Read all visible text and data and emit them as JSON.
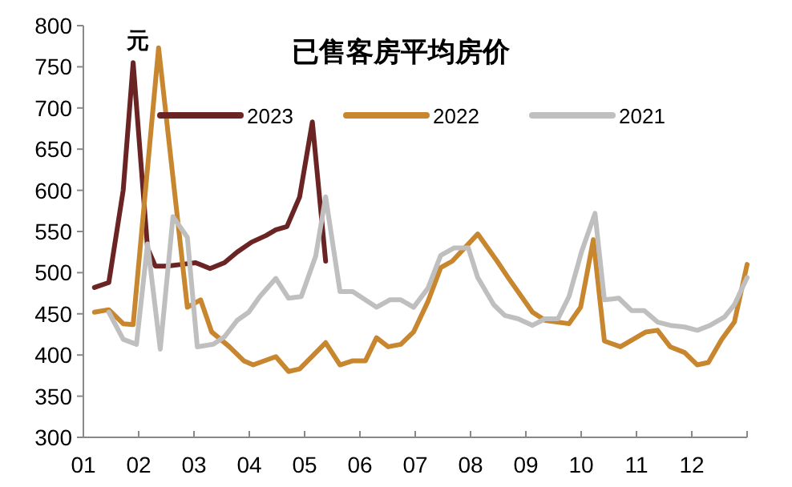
{
  "chart_data": {
    "type": "line",
    "title": "已售客房平均房价",
    "ylabel": "元",
    "xlim": [
      1,
      13
    ],
    "xticks": [
      {
        "value": 1,
        "label": "01"
      },
      {
        "value": 2,
        "label": "02"
      },
      {
        "value": 3,
        "label": "03"
      },
      {
        "value": 4,
        "label": "04"
      },
      {
        "value": 5,
        "label": "05"
      },
      {
        "value": 6,
        "label": "06"
      },
      {
        "value": 7,
        "label": "07"
      },
      {
        "value": 8,
        "label": "08"
      },
      {
        "value": 9,
        "label": "09"
      },
      {
        "value": 10,
        "label": "10"
      },
      {
        "value": 11,
        "label": "11"
      },
      {
        "value": 12,
        "label": "12"
      },
      {
        "value": 13,
        "label": null
      }
    ],
    "ylim": [
      300,
      800
    ],
    "yticks": [
      300,
      350,
      400,
      450,
      500,
      550,
      600,
      650,
      700,
      750,
      800
    ],
    "grid": false,
    "legend": "top",
    "marker": "none",
    "line_style": "solid",
    "series": [
      {
        "name": "2023",
        "color": "#6b2424",
        "x": [
          1.2,
          1.46,
          1.72,
          1.9,
          2.16,
          2.3,
          2.51,
          2.77,
          3.03,
          3.29,
          3.55,
          3.78,
          4.04,
          4.3,
          4.48,
          4.68,
          4.91,
          5.14,
          5.38
        ],
        "values": [
          482,
          488,
          600,
          755,
          530,
          508,
          508,
          510,
          512,
          505,
          512,
          525,
          537,
          545,
          552,
          556,
          592,
          683,
          514
        ]
      },
      {
        "name": "2022",
        "color": "#c8862f",
        "x": [
          1.2,
          1.46,
          1.72,
          1.9,
          2.36,
          2.88,
          3.12,
          3.32,
          3.64,
          3.9,
          4.07,
          4.48,
          4.71,
          4.91,
          5.38,
          5.64,
          5.87,
          6.1,
          6.3,
          6.51,
          6.74,
          6.97,
          7.23,
          7.46,
          7.67,
          8.13,
          8.48,
          8.68,
          9.12,
          9.35,
          9.78,
          9.99,
          10.22,
          10.42,
          10.71,
          10.94,
          11.17,
          11.38,
          11.61,
          11.87,
          12.1,
          12.3,
          12.54,
          12.77,
          13.0
        ],
        "values": [
          452,
          455,
          438,
          437,
          773,
          458,
          467,
          428,
          410,
          393,
          388,
          398,
          380,
          383,
          415,
          388,
          393,
          393,
          421,
          410,
          413,
          428,
          465,
          506,
          514,
          547,
          514,
          494,
          452,
          442,
          438,
          458,
          540,
          417,
          410,
          419,
          428,
          430,
          410,
          403,
          388,
          391,
          419,
          440,
          510
        ]
      },
      {
        "name": "2021",
        "color": "#bfbfbf",
        "x": [
          1.46,
          1.72,
          1.96,
          2.16,
          2.39,
          2.62,
          2.88,
          3.06,
          3.35,
          3.55,
          3.78,
          3.99,
          4.19,
          4.48,
          4.71,
          4.94,
          5.2,
          5.38,
          5.64,
          5.87,
          6.3,
          6.54,
          6.74,
          6.97,
          7.23,
          7.46,
          7.7,
          7.96,
          8.13,
          8.42,
          8.62,
          8.86,
          9.12,
          9.35,
          9.58,
          9.78,
          10.01,
          10.25,
          10.42,
          10.68,
          10.91,
          11.14,
          11.38,
          11.61,
          11.87,
          12.1,
          12.33,
          12.59,
          12.77,
          13.0
        ],
        "values": [
          452,
          419,
          413,
          535,
          407,
          568,
          543,
          410,
          413,
          422,
          442,
          452,
          471,
          493,
          469,
          471,
          520,
          592,
          477,
          477,
          458,
          467,
          467,
          458,
          481,
          521,
          530,
          530,
          494,
          461,
          448,
          444,
          436,
          444,
          444,
          471,
          526,
          572,
          467,
          469,
          454,
          454,
          440,
          436,
          434,
          430,
          436,
          446,
          461,
          494
        ]
      }
    ]
  }
}
